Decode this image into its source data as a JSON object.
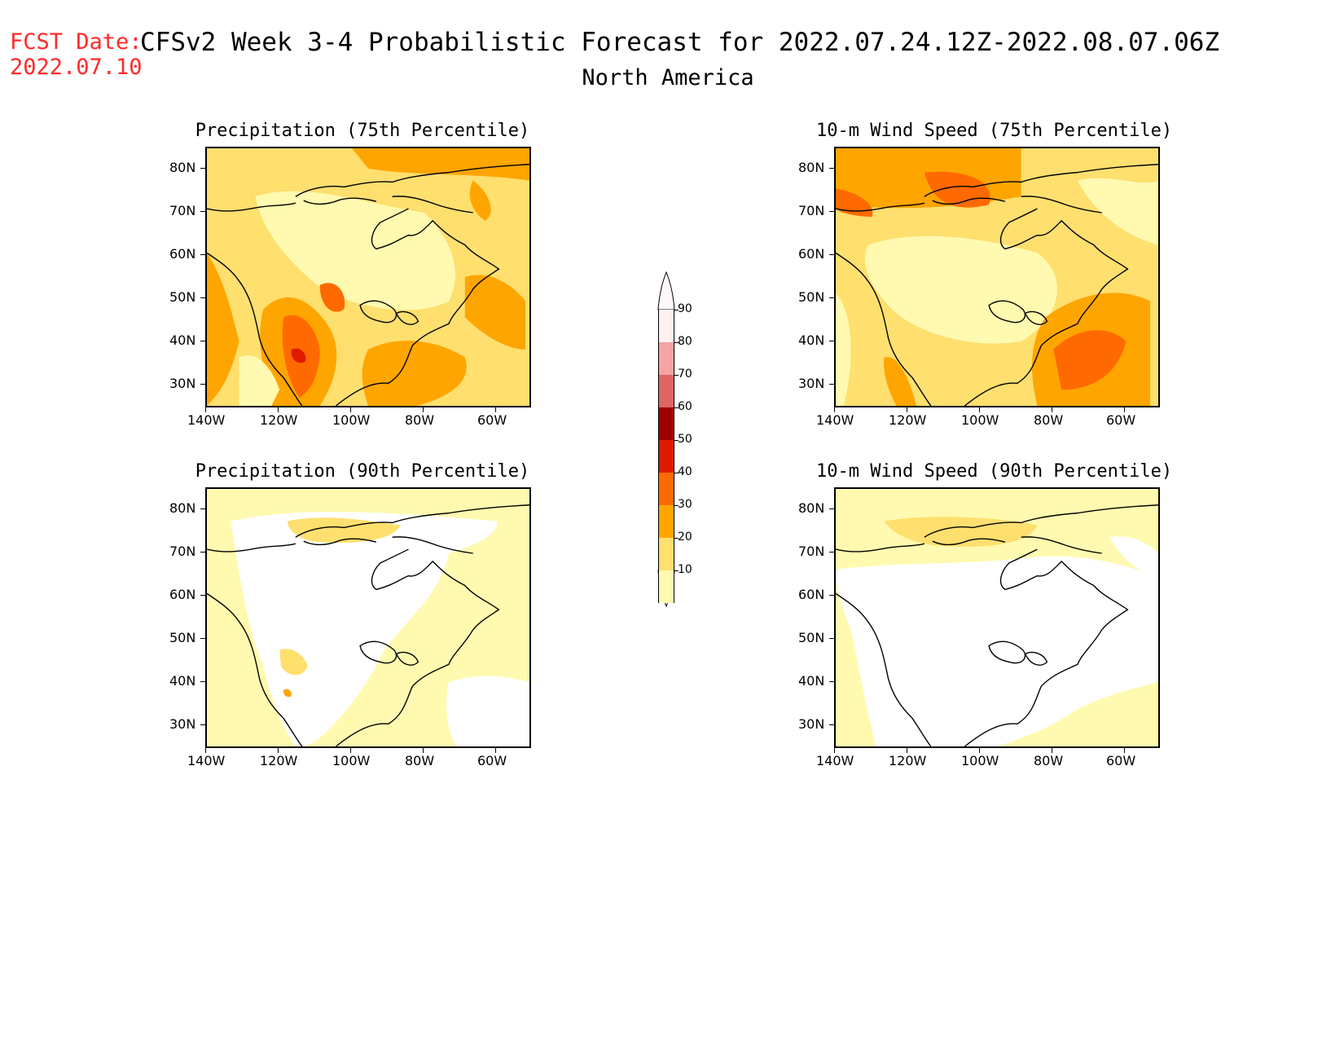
{
  "header": {
    "fcst_label": "FCST Date:",
    "fcst_date": "2022.07.10",
    "title": "CFSv2 Week 3-4 Probabilistic Forecast for 2022.07.24.12Z-2022.08.07.06Z",
    "subtitle": "North America"
  },
  "panels": [
    {
      "title": "Precipitation (75th Percentile)",
      "intensity": "high"
    },
    {
      "title": "10-m Wind Speed (75th Percentile)",
      "intensity": "medium"
    },
    {
      "title": "Precipitation (90th Percentile)",
      "intensity": "low"
    },
    {
      "title": "10-m Wind Speed (90th Percentile)",
      "intensity": "verylow"
    }
  ],
  "axes": {
    "lat_labels": [
      "80N",
      "70N",
      "60N",
      "50N",
      "40N",
      "30N"
    ],
    "lon_labels": [
      "140W",
      "120W",
      "100W",
      "80W",
      "60W"
    ]
  },
  "colorbar": {
    "levels": [
      "90",
      "80",
      "70",
      "60",
      "50",
      "40",
      "30",
      "20",
      "10"
    ],
    "colors": [
      "#fff0f0",
      "#f5a3a3",
      "#e06666",
      "#a10000",
      "#e01a00",
      "#ff6a00",
      "#ffa500",
      "#ffdf6e",
      "#fffab0"
    ]
  }
}
